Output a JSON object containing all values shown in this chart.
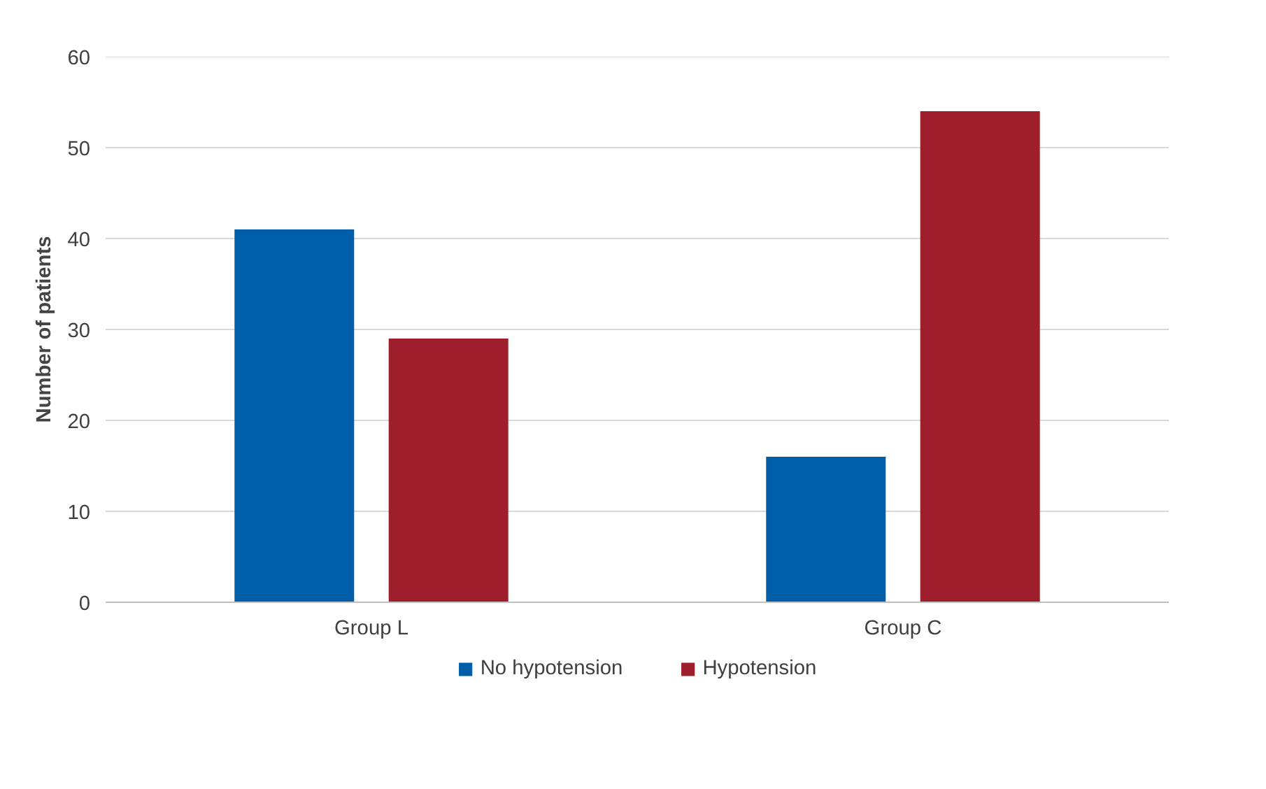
{
  "chart_data": {
    "type": "bar",
    "ylabel": "Number of patients",
    "categories": [
      "Group L",
      "Group C"
    ],
    "series": [
      {
        "name": "No hypotension",
        "color": "#005ea8",
        "values": [
          41,
          16
        ]
      },
      {
        "name": "Hypotension",
        "color": "#9e1f2b",
        "values": [
          29,
          54
        ]
      }
    ],
    "ylim": [
      0,
      60
    ],
    "yticks": [
      0,
      10,
      20,
      30,
      40,
      50,
      60
    ],
    "grid": "y",
    "legend": "bottom"
  }
}
